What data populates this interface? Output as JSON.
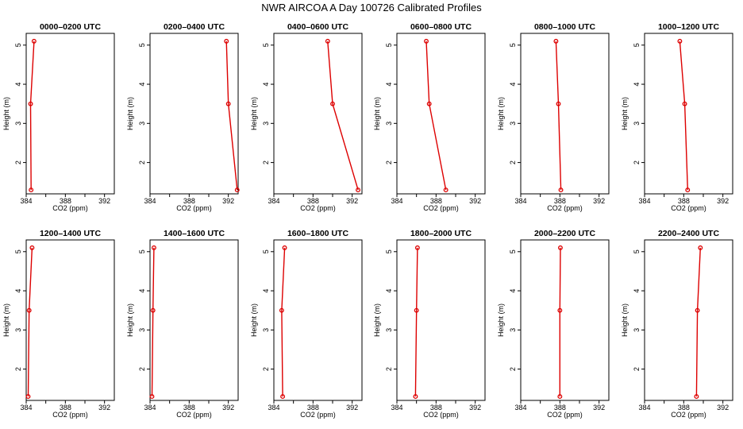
{
  "chart_data": {
    "type": "line",
    "title": "NWR AIRCOA A  Day 100726  Calibrated Profiles",
    "xlabel": "CO2 (ppm)",
    "ylabel": "Height (m)",
    "xlim": [
      384,
      393
    ],
    "ylim": [
      1.2,
      5.3
    ],
    "xticks": [
      384,
      386,
      388,
      390,
      392
    ],
    "xtick_labels": [
      "384",
      "",
      "388",
      "",
      "392"
    ],
    "yticks": [
      2,
      3,
      4,
      5
    ],
    "ytick_labels": [
      "2",
      "3",
      "4",
      "5"
    ],
    "heights": [
      5.1,
      3.5,
      1.3
    ],
    "series_color": "#dd0000",
    "panels": [
      {
        "title": "0000–0200 UTC",
        "co2": [
          384.8,
          384.45,
          384.5
        ]
      },
      {
        "title": "0200–0400 UTC",
        "co2": [
          391.8,
          392.0,
          392.9
        ]
      },
      {
        "title": "0400–0600 UTC",
        "co2": [
          389.5,
          390.0,
          392.6
        ]
      },
      {
        "title": "0600–0800 UTC",
        "co2": [
          387.0,
          387.3,
          389.0
        ]
      },
      {
        "title": "0800–1000 UTC",
        "co2": [
          387.6,
          387.85,
          388.1
        ]
      },
      {
        "title": "1000–1200 UTC",
        "co2": [
          387.6,
          388.1,
          388.4
        ]
      },
      {
        "title": "1200–1400 UTC",
        "co2": [
          384.6,
          384.3,
          384.2
        ]
      },
      {
        "title": "1400–1600 UTC",
        "co2": [
          384.4,
          384.3,
          384.2
        ]
      },
      {
        "title": "1600–1800 UTC",
        "co2": [
          385.1,
          384.8,
          384.9
        ]
      },
      {
        "title": "1800–2000 UTC",
        "co2": [
          386.1,
          386.0,
          385.9
        ]
      },
      {
        "title": "2000–2200 UTC",
        "co2": [
          388.05,
          388.0,
          388.0
        ]
      },
      {
        "title": "2200–2400 UTC",
        "co2": [
          389.7,
          389.4,
          389.3
        ]
      }
    ]
  }
}
